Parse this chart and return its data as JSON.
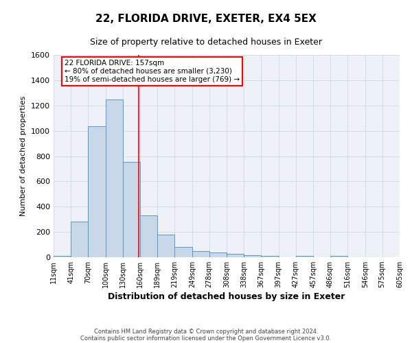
{
  "title1": "22, FLORIDA DRIVE, EXETER, EX4 5EX",
  "title2": "Size of property relative to detached houses in Exeter",
  "xlabel": "Distribution of detached houses by size in Exeter",
  "ylabel": "Number of detached properties",
  "footer1": "Contains HM Land Registry data © Crown copyright and database right 2024.",
  "footer2": "Contains public sector information licensed under the Open Government Licence v3.0.",
  "bin_labels": [
    "11sqm",
    "41sqm",
    "70sqm",
    "100sqm",
    "130sqm",
    "160sqm",
    "189sqm",
    "219sqm",
    "249sqm",
    "278sqm",
    "308sqm",
    "338sqm",
    "367sqm",
    "397sqm",
    "427sqm",
    "457sqm",
    "486sqm",
    "516sqm",
    "546sqm",
    "575sqm",
    "605sqm"
  ],
  "bar_values": [
    10,
    280,
    1035,
    1245,
    755,
    330,
    178,
    83,
    47,
    37,
    25,
    18,
    12,
    0,
    10,
    0,
    12,
    0,
    0,
    0,
    0
  ],
  "bar_color": "#c8d8e8",
  "bar_edge_color": "#5599cc",
  "red_line_x": 157,
  "x_min": 11,
  "x_max": 605,
  "ylim": [
    0,
    1600
  ],
  "yticks": [
    0,
    200,
    400,
    600,
    800,
    1000,
    1200,
    1400,
    1600
  ],
  "annotation_text": "22 FLORIDA DRIVE: 157sqm\n← 80% of detached houses are smaller (3,230)\n19% of semi-detached houses are larger (769) →",
  "annotation_box_color": "white",
  "annotation_box_edge": "red",
  "grid_color": "#d0d8e8",
  "bg_color": "#eef2f8"
}
